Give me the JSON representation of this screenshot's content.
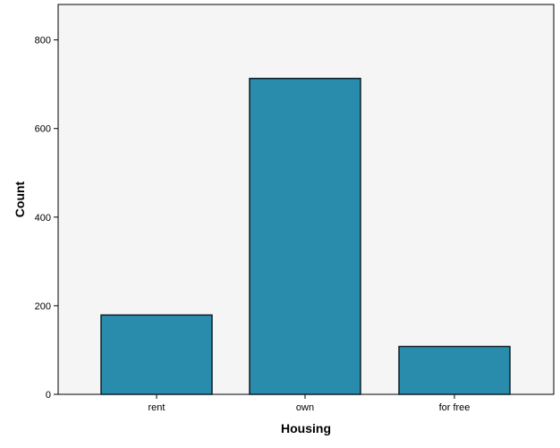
{
  "chart_data": {
    "type": "bar",
    "title": "",
    "xlabel": "Housing",
    "ylabel": "Count",
    "categories": [
      "rent",
      "own",
      "for free"
    ],
    "values": [
      179,
      713,
      108
    ],
    "ylim": [
      0,
      880
    ],
    "yticks": [
      0,
      200,
      400,
      600,
      800
    ],
    "grid": false,
    "legend": "none",
    "colors": {
      "bar_fill": "#2a8cad",
      "bar_stroke": "#0f1f26",
      "plot_background": "#f5f5f5",
      "frame": "#000000"
    }
  }
}
